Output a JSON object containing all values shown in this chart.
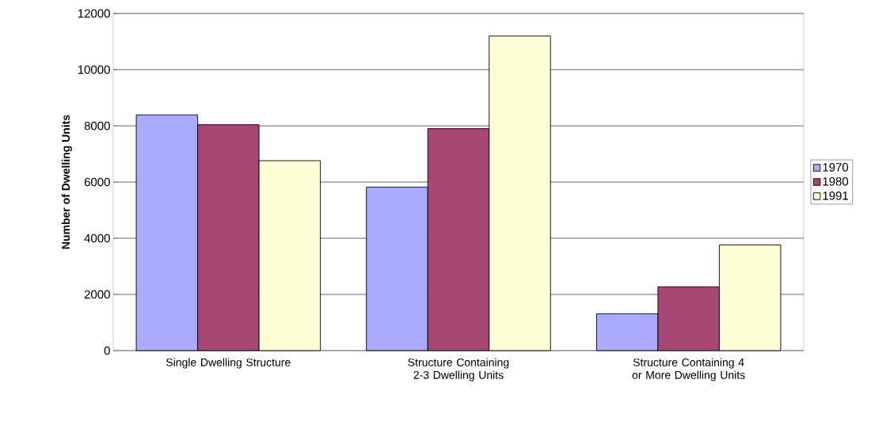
{
  "chart_data": {
    "type": "bar",
    "ylabel": "Number of Dwelling Units",
    "categories": [
      "Single Dwelling Structure",
      "Structure Containing 2-3 Dwelling Units",
      "Structure Containing 4 or More Dwelling Units"
    ],
    "series": [
      {
        "name": "1970",
        "color": "#aaaaff",
        "values": [
          8390,
          5820,
          1310
        ]
      },
      {
        "name": "1980",
        "color": "#a64873",
        "values": [
          8040,
          7900,
          2270
        ]
      },
      {
        "name": "1991",
        "color": "#fdfdd6",
        "values": [
          6760,
          11200,
          3760
        ]
      }
    ],
    "ylim": [
      0,
      12000
    ],
    "yticks": [
      0,
      2000,
      4000,
      6000,
      8000,
      10000,
      12000
    ],
    "grid": "y",
    "legend": "right"
  }
}
